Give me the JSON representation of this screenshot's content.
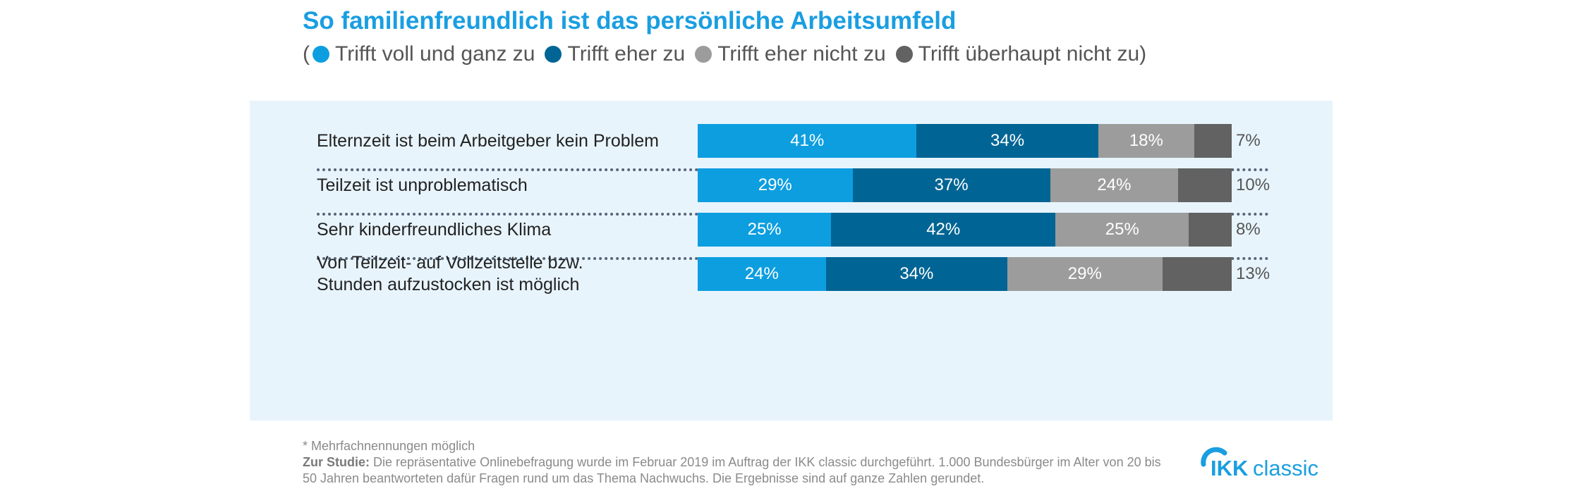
{
  "title": "So familienfreundlich ist das persönliche Arbeitsumfeld",
  "legend": {
    "open": "(",
    "close": ")",
    "items": [
      {
        "label": "Trifft voll und ganz zu",
        "color": "#0d9ee0"
      },
      {
        "label": "Trifft eher zu",
        "color": "#006594"
      },
      {
        "label": "Trifft eher nicht zu",
        "color": "#9c9c9c"
      },
      {
        "label": "Trifft überhaupt nicht zu",
        "color": "#626262"
      }
    ]
  },
  "chart_data": {
    "type": "bar",
    "orientation": "horizontal",
    "stacked": true,
    "categories": [
      "Elternzeit ist beim Arbeitgeber kein Problem",
      "Teilzeit ist unproblematisch",
      "Sehr kinderfreundliches Klima",
      "Von Teilzeit- auf Vollzeitstelle bzw. Stunden aufzustocken ist möglich"
    ],
    "series": [
      {
        "name": "Trifft voll und ganz zu",
        "values": [
          41,
          29,
          25,
          24
        ],
        "labels": [
          "41%",
          "29%",
          "25%",
          "24%"
        ],
        "color": "#0d9ee0"
      },
      {
        "name": "Trifft eher zu",
        "values": [
          34,
          37,
          42,
          34
        ],
        "labels": [
          "34%",
          "37%",
          "42%",
          "34%"
        ],
        "color": "#006594"
      },
      {
        "name": "Trifft eher nicht zu",
        "values": [
          18,
          24,
          25,
          29
        ],
        "labels": [
          "18%",
          "24%",
          "25%",
          "29%"
        ],
        "color": "#9c9c9c"
      },
      {
        "name": "Trifft überhaupt nicht zu",
        "values": [
          7,
          10,
          8,
          13
        ],
        "labels": [
          "7%",
          "10%",
          "8%",
          "13%"
        ],
        "color": "#626262"
      }
    ],
    "xlim": [
      0,
      100
    ],
    "grid": false,
    "legend_position": "top"
  },
  "footnote": {
    "line1": "* Mehrfachnennungen möglich",
    "study_label": "Zur Studie:",
    "study_text": " Die repräsentative Onlinebefragung wurde im Februar 2019 im Auftrag der IKK classic durchgeführt. 1.000 Bundesbürger im Alter von 20 bis 50 Jahren beantworteten dafür Fragen rund um das Thema Nachwuchs. Die Ergebnisse sind auf ganze Zahlen gerundet."
  },
  "logo": {
    "text": "IKKclassic",
    "color": "#1a9ee1"
  }
}
